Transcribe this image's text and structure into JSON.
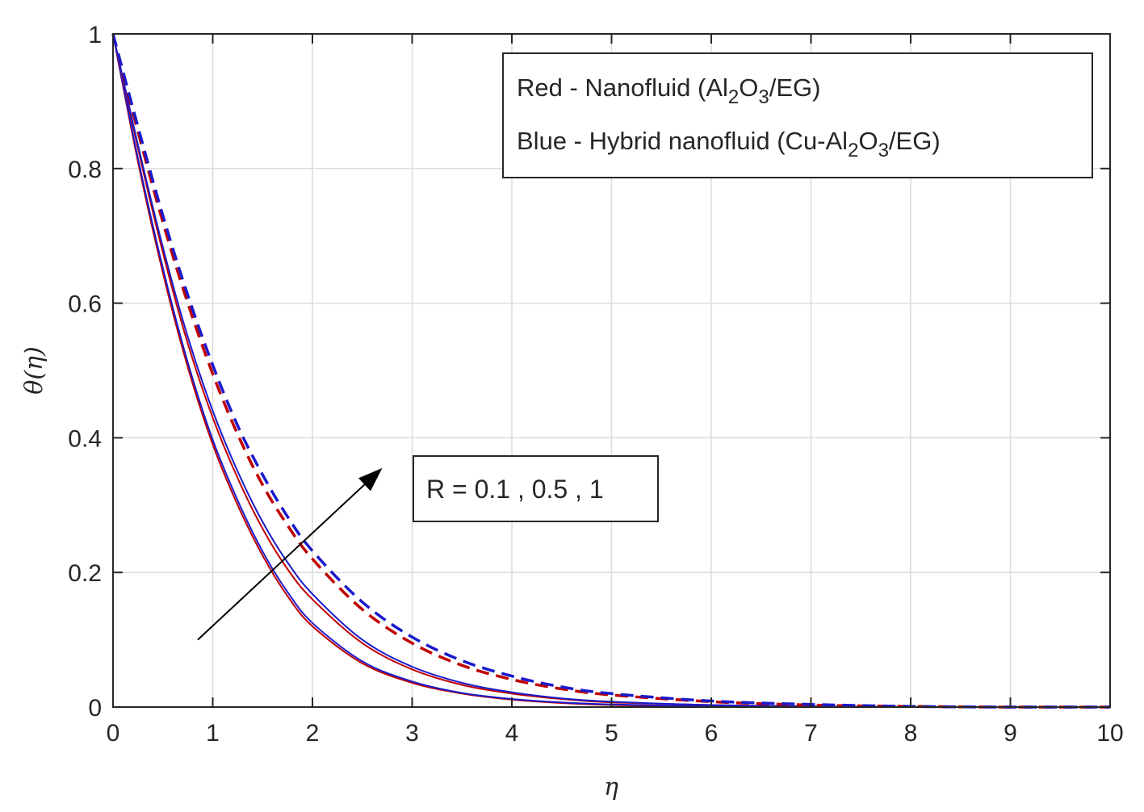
{
  "chart_data": {
    "type": "line",
    "xlabel": "η",
    "ylabel": "θ(η)",
    "xlim": [
      0,
      10
    ],
    "ylim": [
      0,
      1
    ],
    "x_ticks": [
      "0",
      "1",
      "2",
      "3",
      "4",
      "5",
      "6",
      "7",
      "8",
      "9",
      "10"
    ],
    "y_ticks": [
      "0",
      "0.2",
      "0.4",
      "0.6",
      "0.8",
      "1"
    ],
    "grid": true,
    "legend": {
      "placement": "top-right",
      "entries": [
        {
          "prefix": "Red - Nanofluid (Al",
          "sub1": "2",
          "mid": "O",
          "sub2": "3",
          "suffix": "/EG)",
          "color": "#c00000"
        },
        {
          "prefix": "Blue - Hybrid nanofluid (Cu-Al",
          "sub1": "2",
          "mid": "O",
          "sub2": "3",
          "suffix": "/EG)",
          "color": "#1a1acc"
        }
      ]
    },
    "annotation": {
      "text": "R = 0.1 , 0.5 , 1",
      "arrow_from": [
        0.85,
        0.1
      ],
      "arrow_to": [
        2.7,
        0.355
      ]
    },
    "x": [
      0,
      0.25,
      0.5,
      0.75,
      1,
      1.25,
      1.5,
      1.75,
      2,
      2.5,
      3,
      3.5,
      4,
      4.5,
      5,
      6,
      7,
      8,
      9,
      10
    ],
    "series": [
      {
        "group": "R = 0.1",
        "color": "#c00000",
        "style": "solid",
        "values": [
          1,
          0.81,
          0.645,
          0.505,
          0.39,
          0.3,
          0.225,
          0.165,
          0.12,
          0.065,
          0.036,
          0.02,
          0.011,
          0.006,
          0.003,
          0.001,
          0,
          0,
          0,
          0
        ]
      },
      {
        "group": "R = 0.1",
        "color": "#1a1acc",
        "style": "solid",
        "values": [
          1,
          0.815,
          0.652,
          0.512,
          0.397,
          0.307,
          0.231,
          0.171,
          0.125,
          0.068,
          0.038,
          0.021,
          0.012,
          0.007,
          0.004,
          0.001,
          0,
          0,
          0,
          0
        ]
      },
      {
        "group": "R = 0.5",
        "color": "#c00000",
        "style": "solid",
        "values": [
          1,
          0.83,
          0.675,
          0.54,
          0.43,
          0.34,
          0.265,
          0.205,
          0.16,
          0.095,
          0.056,
          0.033,
          0.02,
          0.012,
          0.007,
          0.003,
          0.001,
          0,
          0,
          0
        ]
      },
      {
        "group": "R = 0.5",
        "color": "#1a1acc",
        "style": "solid",
        "values": [
          1,
          0.835,
          0.683,
          0.55,
          0.44,
          0.35,
          0.275,
          0.215,
          0.168,
          0.1,
          0.06,
          0.036,
          0.022,
          0.013,
          0.008,
          0.003,
          0.001,
          0,
          0,
          0
        ]
      },
      {
        "group": "R = 1",
        "color": "#c00000",
        "style": "dashed",
        "values": [
          1,
          0.855,
          0.72,
          0.6,
          0.495,
          0.405,
          0.33,
          0.27,
          0.22,
          0.145,
          0.095,
          0.062,
          0.041,
          0.027,
          0.018,
          0.008,
          0.003,
          0.001,
          0,
          0
        ]
      },
      {
        "group": "R = 1",
        "color": "#1a1acc",
        "style": "dashed",
        "values": [
          1,
          0.862,
          0.73,
          0.612,
          0.508,
          0.418,
          0.345,
          0.283,
          0.232,
          0.156,
          0.104,
          0.069,
          0.046,
          0.03,
          0.02,
          0.009,
          0.004,
          0.001,
          0,
          0
        ]
      }
    ]
  }
}
